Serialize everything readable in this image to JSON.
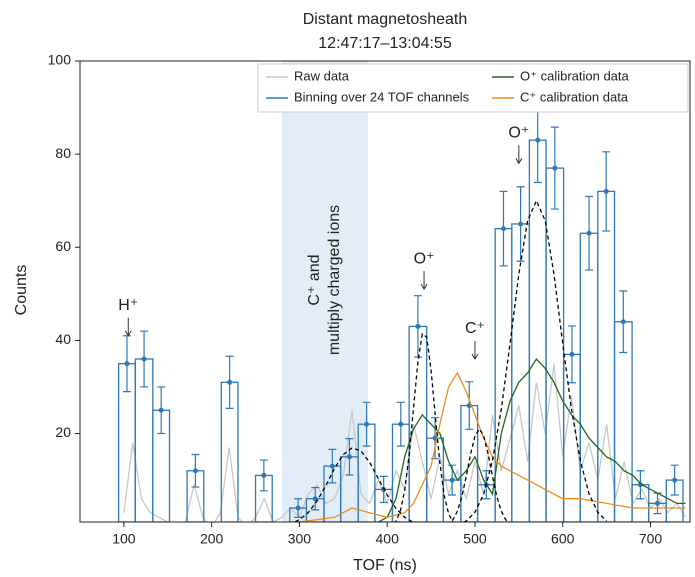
{
  "chart_data": {
    "type": "histogram",
    "title": "Distant magnetosheath",
    "subtitle": "12:47:17–13:04:55",
    "x_label": "TOF (ns)",
    "y_label": "Counts",
    "xlim": [
      50,
      745
    ],
    "ylim": [
      1,
      100
    ],
    "xticks": [
      100,
      200,
      300,
      400,
      500,
      600,
      700
    ],
    "yticks": [
      20,
      40,
      60,
      80,
      100
    ],
    "legend": "upper right",
    "histogram": {
      "name": "Binning over 24 TOF channels",
      "color": "#2f78b7",
      "bins": [
        94,
        113,
        133,
        152,
        172,
        191,
        211,
        230,
        250,
        269,
        289,
        308,
        328,
        347,
        367,
        386,
        406,
        425,
        445,
        464,
        484,
        503,
        523,
        542,
        562,
        581,
        601,
        620,
        640,
        659,
        679,
        698,
        718,
        737
      ],
      "counts": [
        35,
        36,
        25,
        null,
        12,
        null,
        31,
        null,
        11,
        null,
        4,
        6,
        13,
        15,
        22,
        8,
        22,
        43,
        19,
        10,
        26,
        9,
        64,
        65,
        83,
        77,
        37,
        63,
        72,
        44,
        9,
        5,
        10
      ],
      "errors": [
        6,
        6,
        5,
        null,
        3.5,
        null,
        5.6,
        null,
        3.3,
        null,
        2,
        2.4,
        3.6,
        3.9,
        4.7,
        2.8,
        4.7,
        6.6,
        4.4,
        3.2,
        5.1,
        3,
        8,
        8,
        9.1,
        8.8,
        6.1,
        7.9,
        8.5,
        6.6,
        3,
        2.2,
        3.2
      ]
    },
    "series": [
      {
        "name": "Raw data",
        "color": "#c8c8c8",
        "x": [
          100,
          110,
          120,
          130,
          140,
          150,
          160,
          170,
          180,
          190,
          200,
          210,
          220,
          230,
          240,
          250,
          260,
          270,
          280,
          290,
          300,
          310,
          320,
          330,
          340,
          350,
          360,
          370,
          380,
          390,
          400,
          410,
          420,
          430,
          440,
          450,
          460,
          470,
          480,
          490,
          500,
          510,
          520,
          530,
          540,
          550,
          560,
          570,
          580,
          590,
          600,
          610,
          620,
          630,
          640,
          650,
          660,
          670,
          680,
          690,
          700,
          710,
          720,
          730,
          740
        ],
        "values": [
          3,
          18,
          6,
          3,
          2,
          1,
          0,
          1,
          9,
          2,
          0,
          3,
          17,
          2,
          0,
          2,
          6,
          1,
          2,
          4,
          2,
          7,
          9,
          5,
          6,
          11,
          25,
          7,
          5,
          10,
          5,
          12,
          8,
          22,
          14,
          6,
          15,
          7,
          12,
          6,
          14,
          7,
          24,
          12,
          19,
          26,
          14,
          31,
          20,
          35,
          15,
          28,
          12,
          18,
          10,
          22,
          6,
          14,
          5,
          8,
          4,
          6,
          3,
          5,
          2
        ]
      },
      {
        "name": "O⁺ calibration data",
        "color": "#1e6b1e",
        "x": [
          390,
          400,
          410,
          420,
          430,
          440,
          450,
          460,
          470,
          480,
          490,
          500,
          510,
          520,
          530,
          540,
          550,
          560,
          570,
          580,
          590,
          600,
          610,
          620,
          630,
          640,
          650,
          660,
          670,
          680,
          690,
          700,
          710,
          720,
          730,
          740
        ],
        "values": [
          1,
          2,
          6,
          15,
          21,
          24,
          22,
          20,
          14,
          10,
          12,
          15,
          10,
          7,
          20,
          27,
          31,
          33,
          36,
          34,
          31,
          27,
          24,
          22,
          19,
          17,
          15,
          14,
          12,
          11,
          9,
          8,
          7,
          6,
          5,
          5
        ]
      },
      {
        "name": "C⁺ calibration data",
        "color": "#f28c18",
        "x": [
          300,
          320,
          340,
          360,
          380,
          400,
          420,
          430,
          440,
          450,
          460,
          470,
          480,
          490,
          500,
          510,
          520,
          530,
          540,
          560,
          580,
          600,
          620,
          650,
          680,
          710,
          740
        ],
        "values": [
          1,
          1.5,
          2,
          4,
          3,
          2,
          3,
          5,
          9,
          13,
          22,
          30,
          33,
          29,
          24,
          19,
          15,
          13,
          12,
          10,
          8,
          6,
          6,
          5,
          4,
          4,
          4
        ]
      },
      {
        "color": "#000000",
        "dash": true,
        "x": [
          280,
          290,
          300,
          310,
          320,
          330,
          340,
          350,
          360,
          370,
          380,
          390,
          400,
          410,
          420,
          430,
          440
        ],
        "values": [
          0.2,
          0.6,
          1.5,
          3.0,
          5.5,
          8.8,
          12.5,
          15.5,
          16.9,
          16.3,
          13.8,
          10.3,
          6.8,
          3.9,
          2.0,
          0.9,
          0.4
        ]
      },
      {
        "color": "#000000",
        "dash": true,
        "x": [
          400,
          405,
          410,
          415,
          420,
          425,
          430,
          435,
          440,
          445,
          450,
          455,
          460,
          465,
          470,
          475,
          480
        ],
        "values": [
          0.1,
          0.4,
          1.2,
          3.4,
          7.8,
          15.4,
          25.5,
          35.4,
          41.4,
          40.7,
          33.6,
          23.3,
          13.6,
          6.7,
          2.8,
          1.0,
          0.3
        ]
      },
      {
        "color": "#000000",
        "dash": true,
        "x": [
          460,
          465,
          470,
          475,
          480,
          485,
          490,
          495,
          500,
          505,
          510,
          515,
          520,
          525,
          530,
          535,
          540,
          545,
          550
        ],
        "values": [
          0.05,
          0.2,
          0.6,
          1.5,
          3.3,
          6.4,
          10.8,
          15.6,
          19.5,
          21,
          19.5,
          15.6,
          10.8,
          6.4,
          3.3,
          1.5,
          0.6,
          0.2,
          0.05
        ]
      },
      {
        "color": "#000000",
        "dash": true,
        "x": [
          480,
          490,
          500,
          510,
          520,
          530,
          540,
          550,
          560,
          570,
          580,
          590,
          600,
          610,
          620,
          630,
          640,
          650
        ],
        "values": [
          0.4,
          1.2,
          3.1,
          7.0,
          14.2,
          25.2,
          39.4,
          54.2,
          65.7,
          70,
          65.7,
          54.2,
          39.4,
          25.2,
          14.2,
          7.0,
          3.1,
          1.2
        ]
      }
    ],
    "shaded_region": {
      "xlim": [
        280,
        378
      ],
      "color": "#e3edf7",
      "label": [
        "C⁺ and",
        "multiply charged ions"
      ]
    },
    "annotations": [
      {
        "text": "H⁺",
        "x": 105,
        "y": 41
      },
      {
        "text": "O⁺",
        "x": 442,
        "y": 51
      },
      {
        "text": "C⁺",
        "x": 500,
        "y": 36
      },
      {
        "text": "O⁺",
        "x": 550,
        "y": 78
      }
    ]
  }
}
